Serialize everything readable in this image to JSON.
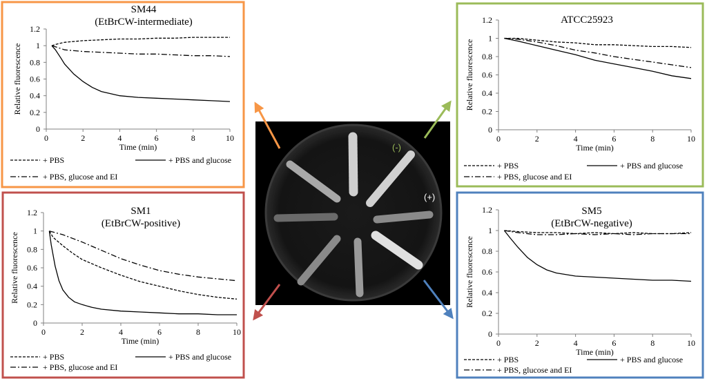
{
  "colors": {
    "sm44_frame": "#f79646",
    "atcc_frame": "#9bbb59",
    "sm1_frame": "#c0504d",
    "sm5_frame": "#4f81bd",
    "neg_label": "#9bbb59",
    "pos_label": "#ffffff"
  },
  "plate": {
    "neg_label": "(-)",
    "pos_label": "(+)"
  },
  "chart_data": [
    {
      "id": "sm44",
      "type": "line",
      "title": "SM44",
      "subtitle": "(EtBrCW-intermediate)",
      "xlabel": "Time (min)",
      "ylabel": "Relative fluorescence",
      "xlim": [
        0,
        10
      ],
      "ylim": [
        0,
        1.2
      ],
      "xticks": [
        "0",
        "2",
        "4",
        "6",
        "8",
        "10"
      ],
      "yticks": [
        "0",
        "0.2",
        "0.4",
        "0.6",
        "0.8",
        "1",
        "1.2"
      ],
      "series": [
        {
          "name": "+ PBS",
          "style": "dashed",
          "x": [
            0.3,
            0.6,
            1,
            1.5,
            2,
            3,
            4,
            5,
            6,
            7,
            8,
            9,
            10
          ],
          "y": [
            1.0,
            1.02,
            1.04,
            1.05,
            1.06,
            1.07,
            1.08,
            1.08,
            1.09,
            1.09,
            1.1,
            1.1,
            1.1
          ]
        },
        {
          "name": "+ PBS and glucose",
          "style": "solid",
          "x": [
            0.3,
            0.5,
            0.8,
            1,
            1.5,
            2,
            2.5,
            3,
            4,
            5,
            6,
            7,
            8,
            9,
            10
          ],
          "y": [
            1.0,
            0.95,
            0.85,
            0.78,
            0.66,
            0.57,
            0.5,
            0.45,
            0.4,
            0.38,
            0.37,
            0.36,
            0.35,
            0.34,
            0.33
          ]
        },
        {
          "name": "+ PBS, glucose and EI",
          "style": "dashdot",
          "x": [
            0.3,
            0.6,
            1,
            1.5,
            2,
            3,
            4,
            5,
            6,
            7,
            8,
            9,
            10
          ],
          "y": [
            1.0,
            0.98,
            0.95,
            0.94,
            0.93,
            0.92,
            0.91,
            0.9,
            0.9,
            0.89,
            0.88,
            0.88,
            0.87
          ]
        }
      ]
    },
    {
      "id": "atcc",
      "type": "line",
      "title": "ATCC25923",
      "subtitle": "",
      "xlabel": "Time (min)",
      "ylabel": "Relative fluorescence",
      "xlim": [
        0,
        10
      ],
      "ylim": [
        0,
        1.2
      ],
      "xticks": [
        "0",
        "2",
        "4",
        "6",
        "8",
        "10"
      ],
      "yticks": [
        "0",
        "0.2",
        "0.4",
        "0.6",
        "0.8",
        "1",
        "1.2"
      ],
      "series": [
        {
          "name": "+ PBS",
          "style": "dashed",
          "x": [
            0.3,
            1,
            2,
            3,
            4,
            5,
            6,
            7,
            8,
            9,
            10
          ],
          "y": [
            1.0,
            1.0,
            0.98,
            0.96,
            0.95,
            0.93,
            0.93,
            0.92,
            0.91,
            0.91,
            0.9
          ]
        },
        {
          "name": "+ PBS and glucose",
          "style": "solid",
          "x": [
            0.3,
            1,
            2,
            3,
            4,
            5,
            6,
            7,
            8,
            9,
            10
          ],
          "y": [
            1.0,
            0.97,
            0.92,
            0.87,
            0.82,
            0.76,
            0.72,
            0.68,
            0.64,
            0.59,
            0.56
          ]
        },
        {
          "name": "+ PBS, glucose and EI",
          "style": "dashdot",
          "x": [
            0.3,
            1,
            2,
            3,
            4,
            5,
            6,
            7,
            8,
            9,
            10
          ],
          "y": [
            1.0,
            0.99,
            0.96,
            0.92,
            0.87,
            0.84,
            0.8,
            0.77,
            0.74,
            0.71,
            0.68
          ]
        }
      ]
    },
    {
      "id": "sm1",
      "type": "line",
      "title": "SM1",
      "subtitle": "(EtBrCW-positive)",
      "xlabel": "Time (min)",
      "ylabel": "Relative fluorescence",
      "xlim": [
        0,
        10
      ],
      "ylim": [
        0,
        1.2
      ],
      "xticks": [
        "0",
        "2",
        "4",
        "6",
        "8",
        "10"
      ],
      "yticks": [
        "0",
        "0.2",
        "0.4",
        "0.6",
        "0.8",
        "1",
        "1.2"
      ],
      "series": [
        {
          "name": "+ PBS",
          "style": "dashed",
          "x": [
            0.3,
            0.5,
            1,
            1.5,
            2,
            3,
            4,
            5,
            6,
            7,
            8,
            9,
            10
          ],
          "y": [
            1.0,
            0.93,
            0.84,
            0.76,
            0.69,
            0.6,
            0.52,
            0.45,
            0.4,
            0.35,
            0.31,
            0.28,
            0.26
          ]
        },
        {
          "name": "+ PBS and glucose",
          "style": "solid",
          "x": [
            0.3,
            0.4,
            0.6,
            0.8,
            1,
            1.3,
            1.6,
            2,
            2.5,
            3,
            4,
            5,
            6,
            7,
            8,
            9,
            10
          ],
          "y": [
            1.0,
            0.85,
            0.62,
            0.46,
            0.36,
            0.28,
            0.23,
            0.2,
            0.17,
            0.15,
            0.13,
            0.12,
            0.11,
            0.1,
            0.1,
            0.09,
            0.09
          ]
        },
        {
          "name": "+ PBS, glucose and EI",
          "style": "dashdot",
          "x": [
            0.3,
            1,
            2,
            3,
            4,
            5,
            6,
            7,
            8,
            9,
            10
          ],
          "y": [
            1.0,
            0.96,
            0.88,
            0.79,
            0.7,
            0.63,
            0.57,
            0.53,
            0.5,
            0.48,
            0.46
          ]
        }
      ]
    },
    {
      "id": "sm5",
      "type": "line",
      "title": "SM5",
      "subtitle": "(EtBrCW-negative)",
      "xlabel": "Time (min)",
      "ylabel": "Relative fluorescence",
      "xlim": [
        0,
        10
      ],
      "ylim": [
        0,
        1.2
      ],
      "xticks": [
        "0",
        "2",
        "4",
        "6",
        "8",
        "10"
      ],
      "yticks": [
        "0",
        "0.2",
        "0.4",
        "0.6",
        "0.8",
        "1",
        "1.2"
      ],
      "series": [
        {
          "name": "+ PBS",
          "style": "dashed",
          "x": [
            0.3,
            1,
            2,
            3,
            4,
            5,
            6,
            7,
            8,
            9,
            10
          ],
          "y": [
            1.0,
            0.99,
            0.98,
            0.98,
            0.97,
            0.98,
            0.97,
            0.98,
            0.97,
            0.97,
            0.98
          ]
        },
        {
          "name": "+ PBS and glucose",
          "style": "solid",
          "x": [
            0.3,
            0.6,
            1,
            1.5,
            2,
            2.5,
            3,
            4,
            5,
            6,
            7,
            8,
            9,
            10
          ],
          "y": [
            1.0,
            0.93,
            0.84,
            0.74,
            0.67,
            0.62,
            0.59,
            0.56,
            0.55,
            0.54,
            0.53,
            0.52,
            0.52,
            0.51
          ]
        },
        {
          "name": "+ PBS, glucose and EI",
          "style": "dashdot",
          "x": [
            0.3,
            1,
            2,
            3,
            4,
            5,
            6,
            7,
            8,
            9,
            10
          ],
          "y": [
            1.0,
            0.98,
            0.96,
            0.96,
            0.97,
            0.96,
            0.97,
            0.96,
            0.97,
            0.97,
            0.97
          ]
        }
      ]
    }
  ]
}
